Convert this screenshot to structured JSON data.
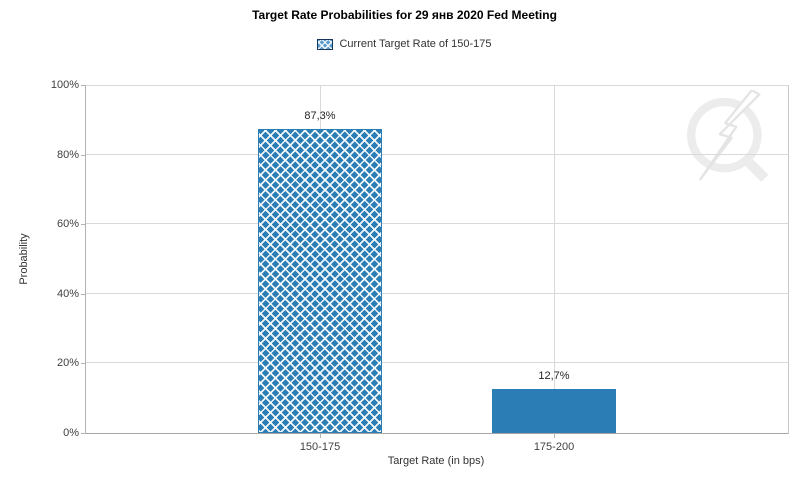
{
  "title": "Target Rate Probabilities for 29 янв 2020 Fed Meeting",
  "legend": {
    "label": "Current Target Rate of 150-175",
    "swatch_style": "blue-crosshatch"
  },
  "colors": {
    "bar_blue": "#2a7db5",
    "legend_swatch_border": "#17365d",
    "gridline": "#d9d9d9",
    "axis_line": "#b3b3b3",
    "tick_text": "#404040",
    "watermark_gray": "#ececec"
  },
  "icons": {
    "watermark": "lightning-bolt-circle-logo"
  },
  "chart_data": {
    "type": "bar",
    "categories": [
      "150-175",
      "175-200"
    ],
    "values": [
      87.3,
      12.7
    ],
    "value_labels": [
      "87,3%",
      "12,7%"
    ],
    "bar_styles": [
      "crosshatch",
      "solid"
    ],
    "title": "Target Rate Probabilities for 29 янв 2020 Fed Meeting",
    "xlabel": "Target Rate (in bps)",
    "ylabel": "Probability",
    "ylim": [
      0,
      100
    ],
    "yticks": [
      0,
      20,
      40,
      60,
      80,
      100
    ],
    "ytick_labels": [
      "0%",
      "20%",
      "40%",
      "60%",
      "80%",
      "100%"
    ],
    "grid": true,
    "legend_position": "top-center"
  }
}
